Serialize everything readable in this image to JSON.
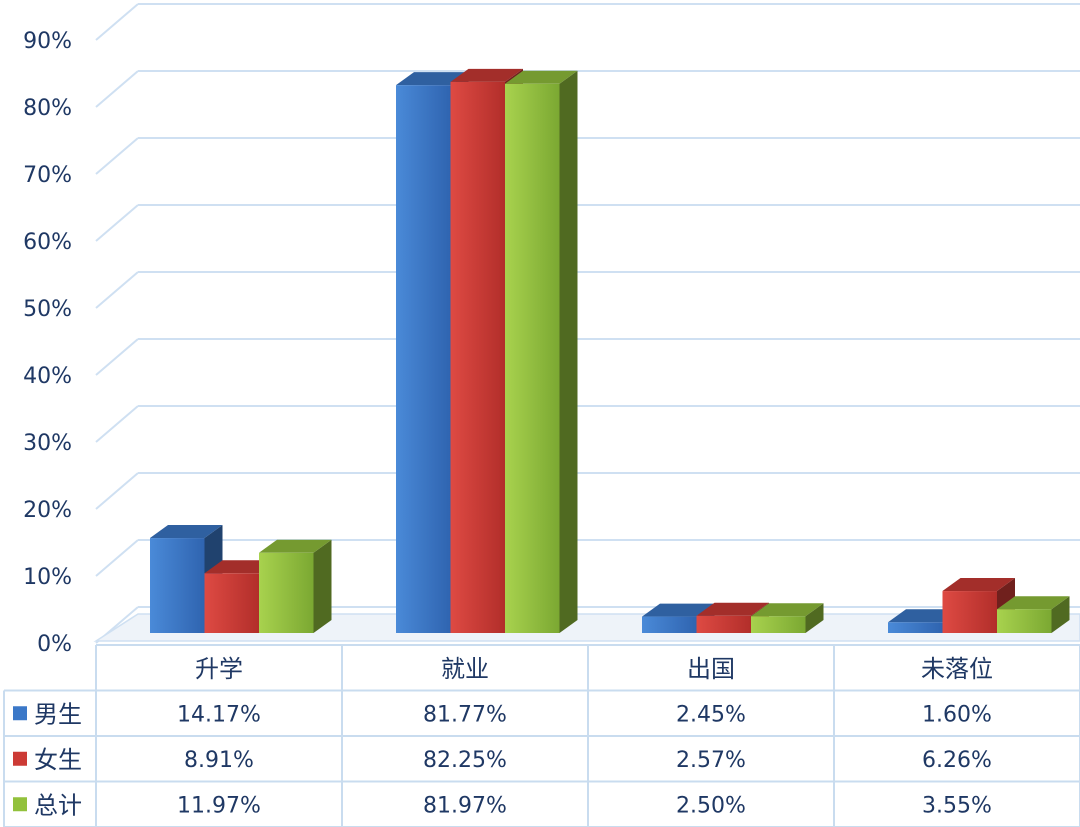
{
  "chart_data": {
    "type": "bar",
    "categories": [
      "升学",
      "就业",
      "出国",
      "未落位"
    ],
    "series": [
      {
        "name": "男生",
        "color": "#3b78c8",
        "values": [
          14.17,
          81.77,
          2.45,
          1.6
        ],
        "labels": [
          "14.17%",
          "81.77%",
          "2.45%",
          "1.60%"
        ]
      },
      {
        "name": "女生",
        "color": "#cc3a35",
        "values": [
          8.91,
          82.25,
          2.57,
          6.26
        ],
        "labels": [
          "8.91%",
          "82.25%",
          "2.57%",
          "6.26%"
        ]
      },
      {
        "name": "总计",
        "color": "#92c13c",
        "values": [
          11.97,
          81.97,
          2.5,
          3.55
        ],
        "labels": [
          "11.97%",
          "81.97%",
          "2.50%",
          "3.55%"
        ]
      }
    ],
    "yticks": [
      "0%",
      "10%",
      "20%",
      "30%",
      "40%",
      "50%",
      "60%",
      "70%",
      "80%",
      "90%"
    ],
    "ylim": [
      0,
      90
    ],
    "grid": true,
    "legend": "data-table"
  }
}
